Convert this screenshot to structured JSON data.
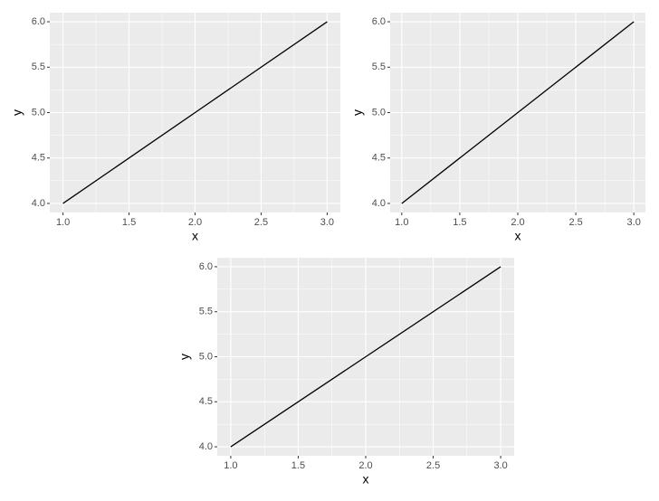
{
  "chart_data": [
    {
      "type": "line",
      "x": [
        1,
        2,
        3
      ],
      "values": [
        4,
        5,
        6
      ],
      "color": "#000000",
      "xlabel": "x",
      "ylabel": "y",
      "xlim": [
        0.9,
        3.1
      ],
      "ylim": [
        3.9,
        6.1
      ],
      "xticks": [
        {
          "value": 1,
          "label": "1.0"
        },
        {
          "value": 1.5,
          "label": "1.5"
        },
        {
          "value": 2,
          "label": "2.0"
        },
        {
          "value": 2.5,
          "label": "2.5"
        },
        {
          "value": 3,
          "label": "3.0"
        }
      ],
      "yticks": [
        {
          "value": 4,
          "label": "4.0"
        },
        {
          "value": 4.5,
          "label": "4.5"
        },
        {
          "value": 5,
          "label": "5.0"
        },
        {
          "value": 5.5,
          "label": "5.5"
        },
        {
          "value": 6,
          "label": "6.0"
        }
      ],
      "grid": true
    },
    {
      "type": "line",
      "x": [
        1,
        2,
        3
      ],
      "values": [
        4,
        5,
        6
      ],
      "color": "#000000",
      "xlabel": "x",
      "ylabel": "y",
      "xlim": [
        0.9,
        3.1
      ],
      "ylim": [
        3.9,
        6.1
      ],
      "xticks": [
        {
          "value": 1,
          "label": "1.0"
        },
        {
          "value": 1.5,
          "label": "1.5"
        },
        {
          "value": 2,
          "label": "2.0"
        },
        {
          "value": 2.5,
          "label": "2.5"
        },
        {
          "value": 3,
          "label": "3.0"
        }
      ],
      "yticks": [
        {
          "value": 4,
          "label": "4.0"
        },
        {
          "value": 4.5,
          "label": "4.5"
        },
        {
          "value": 5,
          "label": "5.0"
        },
        {
          "value": 5.5,
          "label": "5.5"
        },
        {
          "value": 6,
          "label": "6.0"
        }
      ],
      "grid": true
    },
    {
      "type": "line",
      "x": [
        1,
        2,
        3
      ],
      "values": [
        4,
        5,
        6
      ],
      "color": "#000000",
      "xlabel": "x",
      "ylabel": "y",
      "xlim": [
        0.9,
        3.1
      ],
      "ylim": [
        3.9,
        6.1
      ],
      "xticks": [
        {
          "value": 1,
          "label": "1.0"
        },
        {
          "value": 1.5,
          "label": "1.5"
        },
        {
          "value": 2,
          "label": "2.0"
        },
        {
          "value": 2.5,
          "label": "2.5"
        },
        {
          "value": 3,
          "label": "3.0"
        }
      ],
      "yticks": [
        {
          "value": 4,
          "label": "4.0"
        },
        {
          "value": 4.5,
          "label": "4.5"
        },
        {
          "value": 5,
          "label": "5.0"
        },
        {
          "value": 5.5,
          "label": "5.5"
        },
        {
          "value": 6,
          "label": "6.0"
        }
      ],
      "grid": true
    }
  ]
}
